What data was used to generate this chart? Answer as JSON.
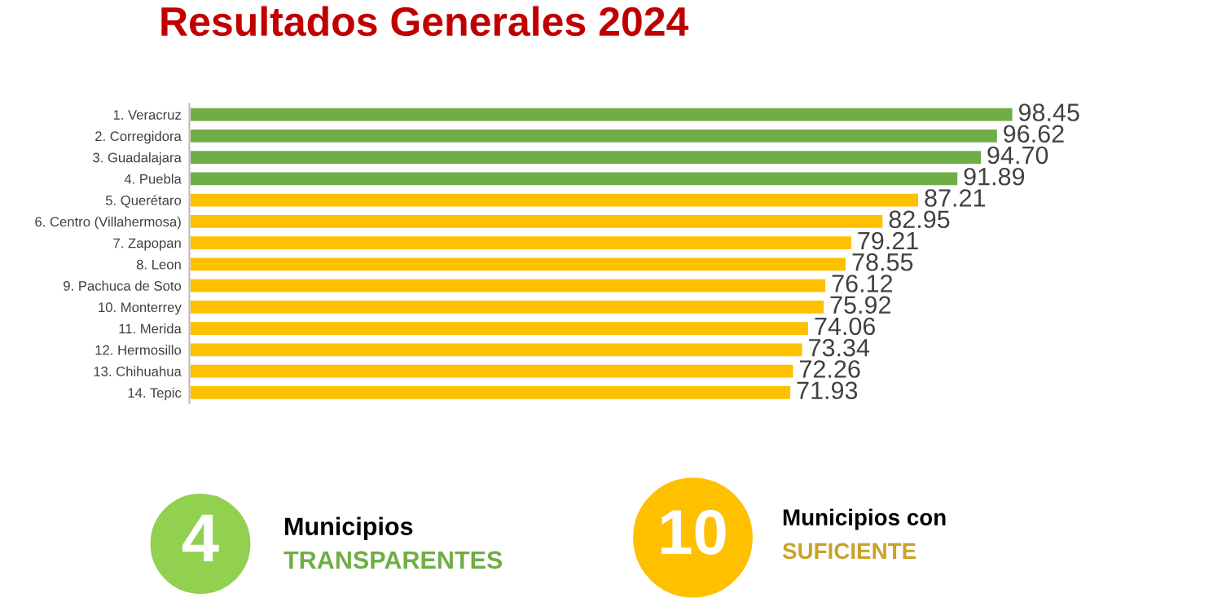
{
  "chart_data": {
    "type": "bar",
    "orientation": "horizontal",
    "title": "Resultados Generales 2024",
    "categories": [
      "1. Veracruz",
      "2. Corregidora",
      "3. Guadalajara",
      "4. Puebla",
      "5. Querétaro",
      "6. Centro (Villahermosa)",
      "7. Zapopan",
      "8. Leon",
      "9. Pachuca de Soto",
      "10. Monterrey",
      "11. Merida",
      "12. Hermosillo",
      "13. Chihuahua",
      "14. Tepic"
    ],
    "values": [
      98.45,
      96.62,
      94.7,
      91.89,
      87.21,
      82.95,
      79.21,
      78.55,
      76.12,
      75.92,
      74.06,
      73.34,
      72.26,
      71.93
    ],
    "value_labels": [
      "98.45",
      "96.62",
      "94.70",
      "91.89",
      "87.21",
      "82.95",
      "79.21",
      "78.55",
      "76.12",
      "75.92",
      "74.06",
      "73.34",
      "72.26",
      "71.93"
    ],
    "colors": [
      "#70ad47",
      "#70ad47",
      "#70ad47",
      "#70ad47",
      "#ffc000",
      "#ffc000",
      "#ffc000",
      "#ffc000",
      "#ffc000",
      "#ffc000",
      "#ffc000",
      "#ffc000",
      "#ffc000",
      "#ffc000"
    ],
    "tick_labels": "y",
    "grid": false,
    "legend": false,
    "annotations": [
      "4",
      "Municipios",
      "TRANSPARENTES",
      "10",
      "Municipios con",
      "SUFICIENTE"
    ]
  }
}
